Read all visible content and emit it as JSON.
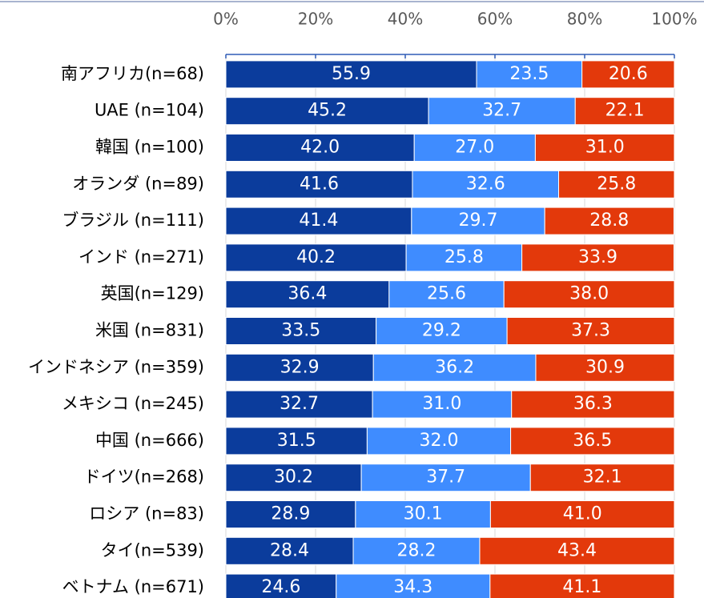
{
  "chart_data": {
    "type": "stacked-bar-horizontal",
    "categories": [
      "南アフリカ(n=68)",
      "UAE (n=104)",
      "韓国 (n=100)",
      "オランダ (n=89)",
      "ブラジル (n=111)",
      "インド (n=271)",
      "英国(n=129)",
      "米国 (n=831)",
      "インドネシア (n=359)",
      "メキシコ (n=245)",
      "中国 (n=666)",
      "ドイツ(n=268)",
      "ロシア (n=83)",
      "タイ(n=539)",
      "ベトナム (n=671)"
    ],
    "series": [
      {
        "color": "#0b3c9c",
        "values": [
          55.9,
          45.2,
          42.0,
          41.6,
          41.4,
          40.2,
          36.4,
          33.5,
          32.9,
          32.7,
          31.5,
          30.2,
          28.9,
          28.4,
          24.6
        ],
        "value_labels": [
          "55.9",
          "45.2",
          "42.0",
          "41.6",
          "41.4",
          "40.2",
          "36.4",
          "33.5",
          "32.9",
          "32.7",
          "31.5",
          "30.2",
          "28.9",
          "28.4",
          "24.6"
        ]
      },
      {
        "color": "#3f8cff",
        "values": [
          23.5,
          32.7,
          27.0,
          32.6,
          29.7,
          25.8,
          25.6,
          29.2,
          36.2,
          31.0,
          32.0,
          37.7,
          30.1,
          28.2,
          34.3
        ],
        "value_labels": [
          "23.5",
          "32.7",
          "27.0",
          "32.6",
          "29.7",
          "25.8",
          "25.6",
          "29.2",
          "36.2",
          "31.0",
          "32.0",
          "37.7",
          "30.1",
          "28.2",
          "34.3"
        ]
      },
      {
        "color": "#e3390b",
        "values": [
          20.6,
          22.1,
          31.0,
          25.8,
          28.8,
          33.9,
          38.0,
          37.3,
          30.9,
          36.3,
          36.5,
          32.1,
          41.0,
          43.4,
          41.1
        ],
        "value_labels": [
          "20.6",
          "22.1",
          "31.0",
          "25.8",
          "28.8",
          "33.9",
          "38.0",
          "37.3",
          "30.9",
          "36.3",
          "36.5",
          "32.1",
          "41.0",
          "43.4",
          "41.1"
        ]
      }
    ],
    "xlim": [
      0,
      100
    ],
    "xticks": [
      {
        "value": 0,
        "label": "0%"
      },
      {
        "value": 20,
        "label": "20%"
      },
      {
        "value": 40,
        "label": "40%"
      },
      {
        "value": 60,
        "label": "60%"
      },
      {
        "value": 80,
        "label": "80%"
      },
      {
        "value": 100,
        "label": "100%"
      }
    ],
    "grid": true
  }
}
